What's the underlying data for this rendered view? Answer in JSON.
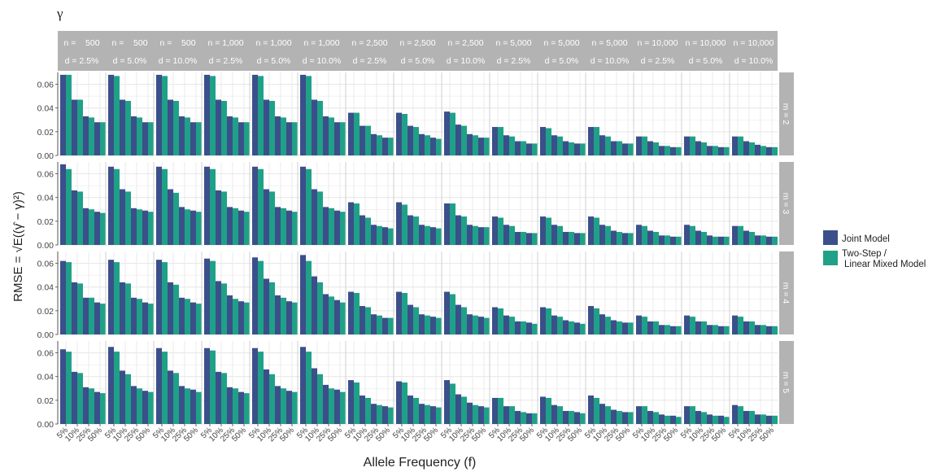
{
  "chart_data": {
    "type": "bar",
    "title": "γ",
    "xlabel": "Allele Frequency (f)",
    "ylabel": "RMSE = √E((γ̂ − γ)²)",
    "ylim": [
      0,
      0.07
    ],
    "yticks": [
      "0.00",
      "0.02",
      "0.04",
      "0.06"
    ],
    "yticks_values": [
      0,
      0.02,
      0.04,
      0.06
    ],
    "categories": [
      "5%",
      "10%",
      "25%",
      "50%"
    ],
    "grid": true,
    "legend_position": "right",
    "colors": {
      "joint": "#3b4f8a",
      "twostep": "#1fa187",
      "strip": "#b3b3b3",
      "strip_text": "#ffffff",
      "gridline": "#e6e6e6"
    },
    "series": [
      {
        "name": "Joint Model",
        "key": "joint"
      },
      {
        "name": "Two-Step /\nLinear Mixed Model",
        "key": "twostep"
      }
    ],
    "column_strips": [
      {
        "n": "n =    500",
        "d": "d = 2.5%"
      },
      {
        "n": "n =    500",
        "d": "d = 5.0%"
      },
      {
        "n": "n =    500",
        "d": "d = 10.0%"
      },
      {
        "n": "n = 1,000",
        "d": "d = 2.5%"
      },
      {
        "n": "n = 1,000",
        "d": "d = 5.0%"
      },
      {
        "n": "n = 1,000",
        "d": "d = 10.0%"
      },
      {
        "n": "n = 2,500",
        "d": "d = 2.5%"
      },
      {
        "n": "n = 2,500",
        "d": "d = 5.0%"
      },
      {
        "n": "n = 2,500",
        "d": "d = 10.0%"
      },
      {
        "n": "n = 5,000",
        "d": "d = 2.5%"
      },
      {
        "n": "n = 5,000",
        "d": "d = 5.0%"
      },
      {
        "n": "n = 5,000",
        "d": "d = 10.0%"
      },
      {
        "n": "n = 10,000",
        "d": "d = 2.5%"
      },
      {
        "n": "n = 10,000",
        "d": "d = 5.0%"
      },
      {
        "n": "n = 10,000",
        "d": "d = 10.0%"
      }
    ],
    "row_strips": [
      "m = 2",
      "m = 3",
      "m = 4",
      "m = 5"
    ],
    "panels": [
      [
        {
          "joint": [
            0.068,
            0.047,
            0.033,
            0.028
          ],
          "twostep": [
            0.068,
            0.047,
            0.032,
            0.028
          ]
        },
        {
          "joint": [
            0.068,
            0.047,
            0.033,
            0.028
          ],
          "twostep": [
            0.067,
            0.046,
            0.032,
            0.028
          ]
        },
        {
          "joint": [
            0.068,
            0.047,
            0.033,
            0.028
          ],
          "twostep": [
            0.067,
            0.046,
            0.032,
            0.028
          ]
        },
        {
          "joint": [
            0.068,
            0.047,
            0.033,
            0.028
          ],
          "twostep": [
            0.067,
            0.046,
            0.032,
            0.028
          ]
        },
        {
          "joint": [
            0.068,
            0.047,
            0.033,
            0.028
          ],
          "twostep": [
            0.067,
            0.046,
            0.032,
            0.028
          ]
        },
        {
          "joint": [
            0.068,
            0.047,
            0.033,
            0.028
          ],
          "twostep": [
            0.067,
            0.046,
            0.032,
            0.028
          ]
        },
        {
          "joint": [
            0.036,
            0.025,
            0.018,
            0.015
          ],
          "twostep": [
            0.036,
            0.025,
            0.017,
            0.015
          ]
        },
        {
          "joint": [
            0.036,
            0.025,
            0.018,
            0.015
          ],
          "twostep": [
            0.035,
            0.024,
            0.017,
            0.014
          ]
        },
        {
          "joint": [
            0.037,
            0.026,
            0.018,
            0.015
          ],
          "twostep": [
            0.036,
            0.025,
            0.017,
            0.015
          ]
        },
        {
          "joint": [
            0.024,
            0.017,
            0.012,
            0.01
          ],
          "twostep": [
            0.024,
            0.016,
            0.012,
            0.01
          ]
        },
        {
          "joint": [
            0.024,
            0.017,
            0.012,
            0.01
          ],
          "twostep": [
            0.023,
            0.016,
            0.011,
            0.01
          ]
        },
        {
          "joint": [
            0.024,
            0.017,
            0.012,
            0.01
          ],
          "twostep": [
            0.024,
            0.016,
            0.012,
            0.01
          ]
        },
        {
          "joint": [
            0.016,
            0.012,
            0.008,
            0.007
          ],
          "twostep": [
            0.016,
            0.011,
            0.008,
            0.007
          ]
        },
        {
          "joint": [
            0.016,
            0.012,
            0.008,
            0.007
          ],
          "twostep": [
            0.016,
            0.011,
            0.008,
            0.007
          ]
        },
        {
          "joint": [
            0.016,
            0.012,
            0.009,
            0.007
          ],
          "twostep": [
            0.016,
            0.011,
            0.008,
            0.007
          ]
        }
      ],
      [
        {
          "joint": [
            0.068,
            0.046,
            0.031,
            0.028
          ],
          "twostep": [
            0.064,
            0.045,
            0.03,
            0.027
          ]
        },
        {
          "joint": [
            0.066,
            0.047,
            0.031,
            0.029
          ],
          "twostep": [
            0.064,
            0.045,
            0.03,
            0.028
          ]
        },
        {
          "joint": [
            0.066,
            0.047,
            0.032,
            0.029
          ],
          "twostep": [
            0.064,
            0.044,
            0.03,
            0.028
          ]
        },
        {
          "joint": [
            0.066,
            0.046,
            0.032,
            0.029
          ],
          "twostep": [
            0.064,
            0.045,
            0.031,
            0.028
          ]
        },
        {
          "joint": [
            0.066,
            0.047,
            0.032,
            0.029
          ],
          "twostep": [
            0.064,
            0.045,
            0.031,
            0.028
          ]
        },
        {
          "joint": [
            0.066,
            0.047,
            0.032,
            0.029
          ],
          "twostep": [
            0.064,
            0.045,
            0.031,
            0.028
          ]
        },
        {
          "joint": [
            0.036,
            0.025,
            0.017,
            0.015
          ],
          "twostep": [
            0.035,
            0.023,
            0.016,
            0.014
          ]
        },
        {
          "joint": [
            0.036,
            0.025,
            0.017,
            0.015
          ],
          "twostep": [
            0.034,
            0.024,
            0.016,
            0.014
          ]
        },
        {
          "joint": [
            0.035,
            0.025,
            0.017,
            0.015
          ],
          "twostep": [
            0.035,
            0.024,
            0.016,
            0.015
          ]
        },
        {
          "joint": [
            0.024,
            0.017,
            0.011,
            0.01
          ],
          "twostep": [
            0.023,
            0.016,
            0.011,
            0.01
          ]
        },
        {
          "joint": [
            0.024,
            0.017,
            0.011,
            0.01
          ],
          "twostep": [
            0.023,
            0.016,
            0.011,
            0.01
          ]
        },
        {
          "joint": [
            0.024,
            0.017,
            0.012,
            0.01
          ],
          "twostep": [
            0.023,
            0.016,
            0.011,
            0.01
          ]
        },
        {
          "joint": [
            0.017,
            0.012,
            0.008,
            0.007
          ],
          "twostep": [
            0.016,
            0.011,
            0.008,
            0.007
          ]
        },
        {
          "joint": [
            0.017,
            0.012,
            0.008,
            0.007
          ],
          "twostep": [
            0.016,
            0.011,
            0.007,
            0.007
          ]
        },
        {
          "joint": [
            0.016,
            0.012,
            0.008,
            0.007
          ],
          "twostep": [
            0.016,
            0.011,
            0.008,
            0.007
          ]
        }
      ],
      [
        {
          "joint": [
            0.062,
            0.044,
            0.031,
            0.027
          ],
          "twostep": [
            0.061,
            0.043,
            0.031,
            0.026
          ]
        },
        {
          "joint": [
            0.063,
            0.044,
            0.031,
            0.027
          ],
          "twostep": [
            0.061,
            0.043,
            0.03,
            0.026
          ]
        },
        {
          "joint": [
            0.063,
            0.044,
            0.031,
            0.027
          ],
          "twostep": [
            0.061,
            0.042,
            0.03,
            0.026
          ]
        },
        {
          "joint": [
            0.064,
            0.045,
            0.033,
            0.028
          ],
          "twostep": [
            0.062,
            0.043,
            0.03,
            0.027
          ]
        },
        {
          "joint": [
            0.065,
            0.047,
            0.033,
            0.028
          ],
          "twostep": [
            0.062,
            0.044,
            0.031,
            0.027
          ]
        },
        {
          "joint": [
            0.067,
            0.049,
            0.034,
            0.029
          ],
          "twostep": [
            0.062,
            0.044,
            0.032,
            0.027
          ]
        },
        {
          "joint": [
            0.036,
            0.024,
            0.017,
            0.014
          ],
          "twostep": [
            0.035,
            0.023,
            0.016,
            0.014
          ]
        },
        {
          "joint": [
            0.036,
            0.025,
            0.017,
            0.015
          ],
          "twostep": [
            0.035,
            0.023,
            0.016,
            0.014
          ]
        },
        {
          "joint": [
            0.036,
            0.025,
            0.017,
            0.015
          ],
          "twostep": [
            0.034,
            0.023,
            0.016,
            0.014
          ]
        },
        {
          "joint": [
            0.023,
            0.016,
            0.011,
            0.01
          ],
          "twostep": [
            0.022,
            0.015,
            0.011,
            0.009
          ]
        },
        {
          "joint": [
            0.023,
            0.016,
            0.012,
            0.01
          ],
          "twostep": [
            0.022,
            0.015,
            0.011,
            0.009
          ]
        },
        {
          "joint": [
            0.024,
            0.017,
            0.012,
            0.01
          ],
          "twostep": [
            0.022,
            0.015,
            0.011,
            0.01
          ]
        },
        {
          "joint": [
            0.016,
            0.011,
            0.008,
            0.007
          ],
          "twostep": [
            0.015,
            0.011,
            0.008,
            0.007
          ]
        },
        {
          "joint": [
            0.016,
            0.011,
            0.008,
            0.007
          ],
          "twostep": [
            0.015,
            0.011,
            0.008,
            0.007
          ]
        },
        {
          "joint": [
            0.016,
            0.011,
            0.008,
            0.007
          ],
          "twostep": [
            0.015,
            0.011,
            0.008,
            0.007
          ]
        }
      ],
      [
        {
          "joint": [
            0.063,
            0.044,
            0.031,
            0.027
          ],
          "twostep": [
            0.061,
            0.043,
            0.03,
            0.026
          ]
        },
        {
          "joint": [
            0.065,
            0.045,
            0.032,
            0.028
          ],
          "twostep": [
            0.061,
            0.042,
            0.03,
            0.027
          ]
        },
        {
          "joint": [
            0.064,
            0.045,
            0.032,
            0.029
          ],
          "twostep": [
            0.061,
            0.043,
            0.03,
            0.027
          ]
        },
        {
          "joint": [
            0.064,
            0.044,
            0.031,
            0.027
          ],
          "twostep": [
            0.062,
            0.043,
            0.03,
            0.026
          ]
        },
        {
          "joint": [
            0.064,
            0.046,
            0.032,
            0.028
          ],
          "twostep": [
            0.061,
            0.042,
            0.03,
            0.027
          ]
        },
        {
          "joint": [
            0.065,
            0.047,
            0.033,
            0.029
          ],
          "twostep": [
            0.061,
            0.042,
            0.03,
            0.027
          ]
        },
        {
          "joint": [
            0.037,
            0.024,
            0.017,
            0.015
          ],
          "twostep": [
            0.035,
            0.022,
            0.016,
            0.014
          ]
        },
        {
          "joint": [
            0.036,
            0.024,
            0.017,
            0.015
          ],
          "twostep": [
            0.035,
            0.022,
            0.016,
            0.014
          ]
        },
        {
          "joint": [
            0.037,
            0.025,
            0.018,
            0.015
          ],
          "twostep": [
            0.034,
            0.023,
            0.016,
            0.014
          ]
        },
        {
          "joint": [
            0.022,
            0.015,
            0.011,
            0.009
          ],
          "twostep": [
            0.022,
            0.015,
            0.01,
            0.009
          ]
        },
        {
          "joint": [
            0.023,
            0.016,
            0.011,
            0.01
          ],
          "twostep": [
            0.022,
            0.015,
            0.011,
            0.009
          ]
        },
        {
          "joint": [
            0.024,
            0.017,
            0.012,
            0.01
          ],
          "twostep": [
            0.022,
            0.015,
            0.011,
            0.01
          ]
        },
        {
          "joint": [
            0.015,
            0.011,
            0.008,
            0.007
          ],
          "twostep": [
            0.015,
            0.01,
            0.007,
            0.006
          ]
        },
        {
          "joint": [
            0.015,
            0.011,
            0.008,
            0.007
          ],
          "twostep": [
            0.015,
            0.01,
            0.007,
            0.006
          ]
        },
        {
          "joint": [
            0.016,
            0.011,
            0.008,
            0.007
          ],
          "twostep": [
            0.015,
            0.011,
            0.008,
            0.007
          ]
        }
      ]
    ]
  }
}
